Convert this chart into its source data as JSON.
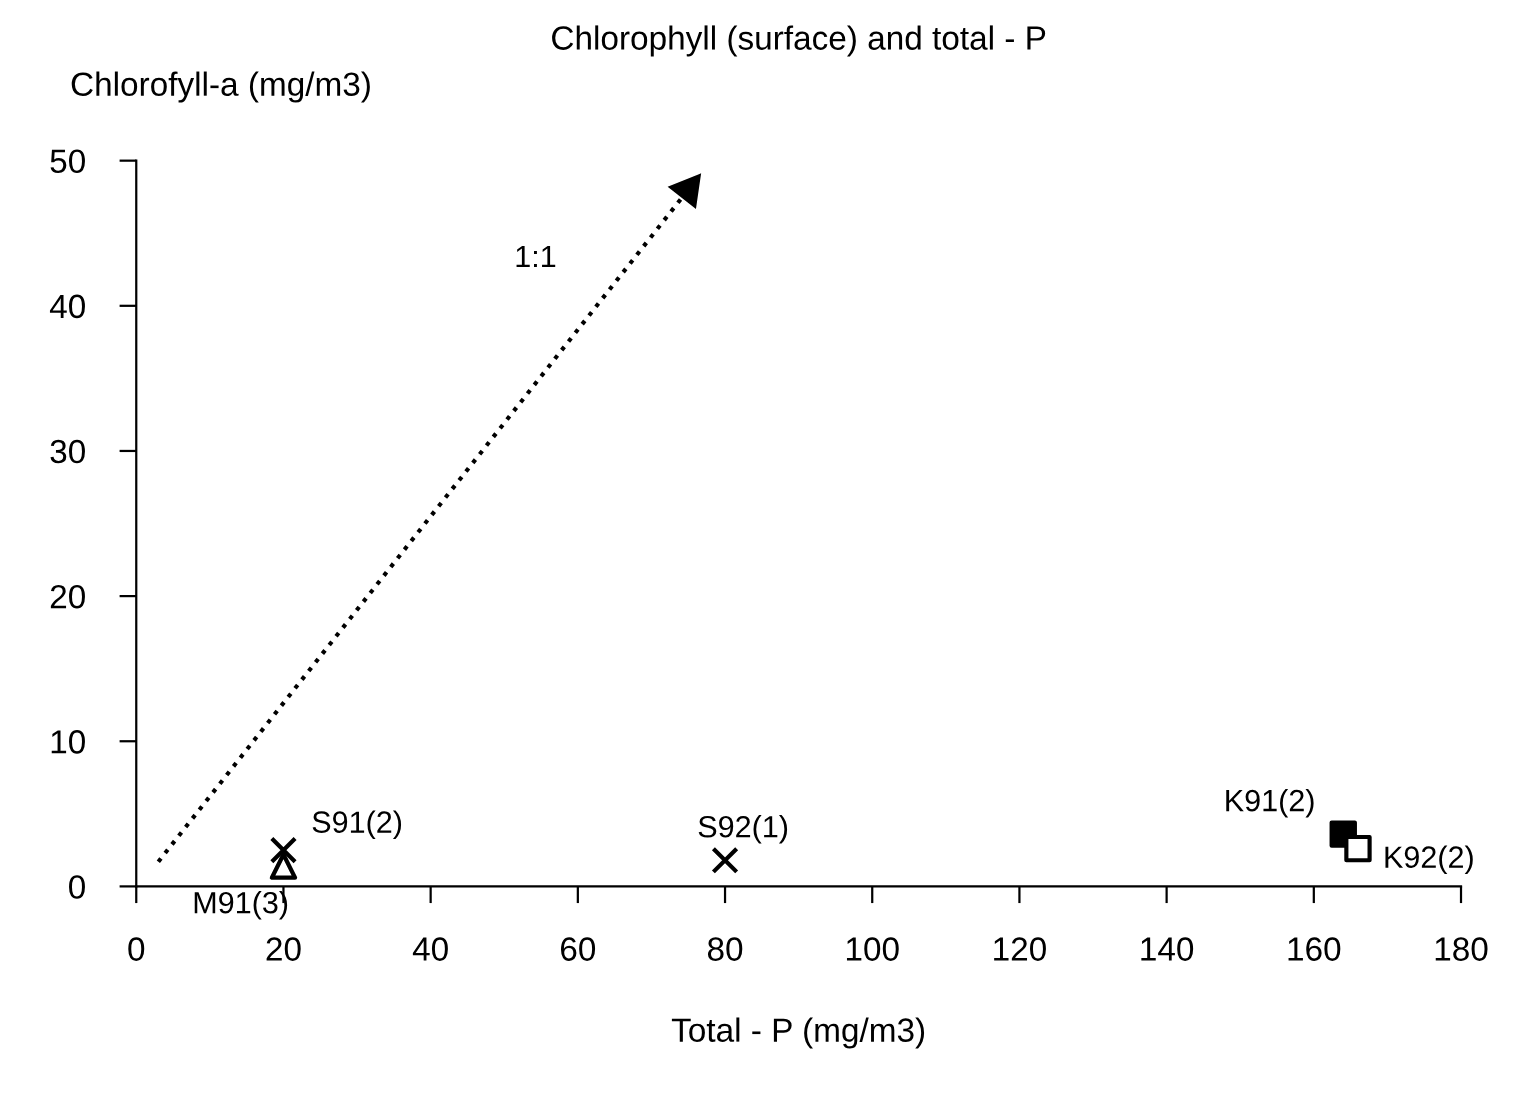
{
  "chart_data": {
    "type": "scatter",
    "title": "Chlorophyll (surface) and total - P",
    "xlabel": "Total - P (mg/m3)",
    "ylabel": "Chlorofyll-a (mg/m3)",
    "xlim": [
      0,
      180
    ],
    "xticks": [
      0,
      20,
      40,
      60,
      80,
      100,
      120,
      140,
      160,
      180
    ],
    "ylim": [
      0,
      50
    ],
    "yticks": [
      0,
      10,
      20,
      30,
      40,
      50
    ],
    "grid": false,
    "legend": false,
    "series": [
      {
        "name": "S91(2)",
        "color": "#000000",
        "marker": "cross",
        "x": [
          20
        ],
        "values": [
          2.5
        ]
      },
      {
        "name": "M91(3)",
        "color": "#ffffff",
        "marker": "triangle",
        "x": [
          20
        ],
        "values": [
          1.4
        ]
      },
      {
        "name": "S92(1)",
        "color": "#000000",
        "marker": "cross",
        "x": [
          80
        ],
        "values": [
          1.8
        ]
      },
      {
        "name": "K91(2)",
        "color": "#000000",
        "marker": "square",
        "x": [
          164
        ],
        "values": [
          3.6
        ]
      },
      {
        "name": "K92(2)",
        "color": "#ffffff",
        "marker": "square",
        "x": [
          166
        ],
        "values": [
          2.6
        ]
      },
      {
        "name": "1:1",
        "type": "line",
        "color": "#000000",
        "marker": "triangle",
        "line_style": "dotted",
        "x": [
          3,
          75
        ],
        "values": [
          1.7,
          48
        ]
      }
    ]
  }
}
